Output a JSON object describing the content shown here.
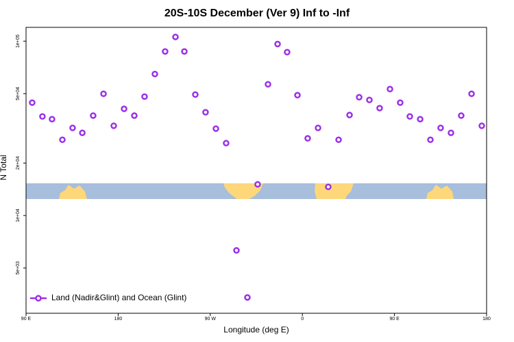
{
  "chart_data": {
    "type": "scatter",
    "title": "20S-10S December (Ver 9)   Inf to -Inf",
    "xlabel": "Longitude (deg E)",
    "ylabel": "N Total",
    "log_y": true,
    "xlim": [
      90,
      540
    ],
    "ylim": [
      2750,
      120000
    ],
    "xticks": [
      {
        "value": 90,
        "label": "90 E"
      },
      180,
      {
        "value": 270,
        "label": "90 W"
      },
      {
        "value": 360,
        "label": "0"
      },
      {
        "value": 450,
        "label": "90 E"
      },
      {
        "value": 540,
        "label": "180"
      }
    ],
    "yticks": [
      {
        "value": 5000,
        "label": "5e+03"
      },
      {
        "value": 10000,
        "label": "1e+04"
      },
      {
        "value": 20000,
        "label": "2e+04"
      },
      {
        "value": 50000,
        "label": "5e+04"
      },
      {
        "value": 100000,
        "label": "1e+05"
      }
    ],
    "legend": "bottom-left",
    "series": [
      {
        "name": "Land (Nadir&Glint) and Ocean (Glint)",
        "color": "#9b30e6",
        "x": [
          96,
          106,
          115.4,
          125.5,
          135.5,
          145,
          155.6,
          165.7,
          175.7,
          185.8,
          195.8,
          205.8,
          215.9,
          225.9,
          236,
          244.7,
          255.4,
          265.4,
          275.5,
          285.5,
          295.6,
          306.3,
          316.3,
          326.4,
          335.8,
          345.1,
          355.2,
          365.2,
          375.3,
          385.3,
          395.4,
          406.1,
          415.5,
          425.5,
          435.5,
          445.6,
          455.6,
          465,
          475.1,
          485.1,
          495.1,
          505.2,
          515.2,
          525.3,
          535.3
        ],
        "values": [
          44400,
          37000,
          35700,
          27200,
          31800,
          29800,
          37400,
          49900,
          32700,
          40900,
          37400,
          48100,
          64800,
          87300,
          105700,
          87300,
          49400,
          39100,
          31500,
          26000,
          6310,
          3390,
          15100,
          56600,
          96300,
          86500,
          49000,
          27700,
          31800,
          14600,
          27200,
          37700,
          47700,
          46000,
          41300,
          53100,
          44400,
          37000,
          35700,
          27200,
          31800,
          29800,
          37400,
          49900,
          32700
        ]
      }
    ]
  }
}
